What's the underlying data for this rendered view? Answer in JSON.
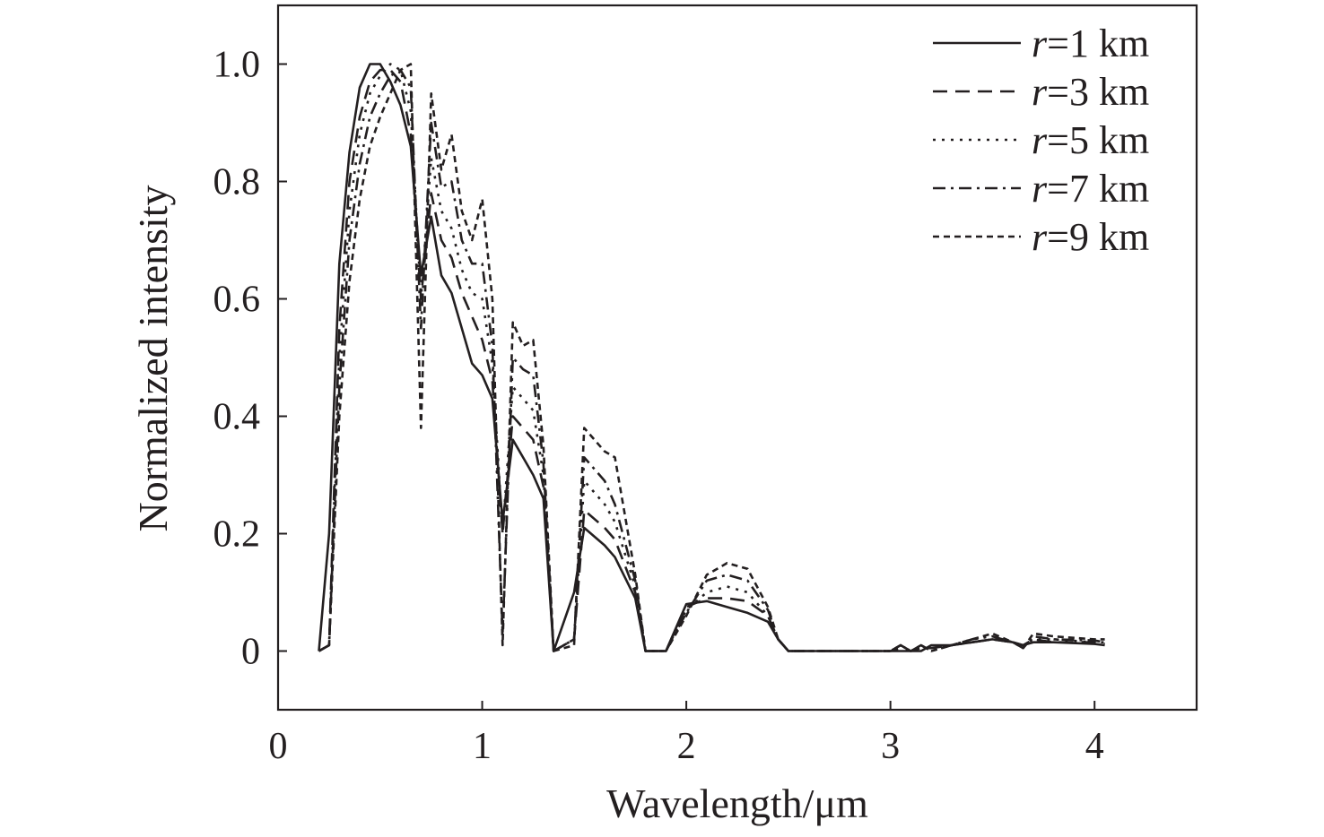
{
  "chart_data": {
    "type": "line",
    "xlabel": "Wavelength/μm",
    "ylabel": "Normalized intensity",
    "xlim": [
      0,
      4.5
    ],
    "ylim": [
      -0.1,
      1.1
    ],
    "xticks": [
      0,
      1,
      2,
      3,
      4
    ],
    "xtick_labels": [
      "0",
      "1",
      "2",
      "3",
      "4"
    ],
    "yticks": [
      0,
      0.2,
      0.4,
      0.6,
      0.8,
      1.0
    ],
    "ytick_labels": [
      "0",
      "0.2",
      "0.4",
      "0.6",
      "0.8",
      "1.0"
    ],
    "grid": false,
    "legend_position": "top-right",
    "series": [
      {
        "name": "r=1 km",
        "name_var": "r",
        "name_rest": "=1 km",
        "dash": "solid",
        "x": [
          0.2,
          0.25,
          0.3,
          0.35,
          0.4,
          0.45,
          0.5,
          0.55,
          0.6,
          0.65,
          0.7,
          0.75,
          0.8,
          0.85,
          0.9,
          0.95,
          1.0,
          1.05,
          1.1,
          1.15,
          1.2,
          1.25,
          1.3,
          1.35,
          1.45,
          1.5,
          1.6,
          1.65,
          1.75,
          1.8,
          1.85,
          1.9,
          2.0,
          2.1,
          2.2,
          2.3,
          2.4,
          2.45,
          2.5,
          2.7,
          2.9,
          3.0,
          3.05,
          3.1,
          3.15,
          3.2,
          3.3,
          3.4,
          3.5,
          3.6,
          3.65,
          3.7,
          3.8,
          4.0,
          4.05
        ],
        "y": [
          0,
          0.2,
          0.66,
          0.85,
          0.96,
          1.0,
          1.0,
          0.97,
          0.93,
          0.86,
          0.64,
          0.74,
          0.64,
          0.61,
          0.55,
          0.49,
          0.47,
          0.43,
          0.22,
          0.36,
          0.33,
          0.3,
          0.26,
          0.0,
          0.1,
          0.21,
          0.18,
          0.16,
          0.09,
          0.0,
          0.0,
          0.0,
          0.08,
          0.085,
          0.075,
          0.065,
          0.05,
          0.02,
          0.0,
          0.0,
          0.0,
          0.0,
          0.0,
          0.0,
          0.0,
          0.01,
          0.01,
          0.015,
          0.02,
          0.015,
          0.01,
          0.015,
          0.015,
          0.012,
          0.01
        ]
      },
      {
        "name": "r=3 km",
        "name_var": "r",
        "name_rest": "=3 km",
        "dash": "dashed",
        "x": [
          0.2,
          0.25,
          0.3,
          0.35,
          0.4,
          0.45,
          0.5,
          0.55,
          0.6,
          0.65,
          0.7,
          0.75,
          0.8,
          0.85,
          0.9,
          0.95,
          1.0,
          1.05,
          1.1,
          1.15,
          1.2,
          1.25,
          1.3,
          1.35,
          1.45,
          1.5,
          1.6,
          1.65,
          1.75,
          1.8,
          1.85,
          1.9,
          2.0,
          2.1,
          2.2,
          2.3,
          2.4,
          2.45,
          2.5,
          2.7,
          2.9,
          3.0,
          3.05,
          3.1,
          3.15,
          3.2,
          3.3,
          3.4,
          3.5,
          3.6,
          3.65,
          3.7,
          3.8,
          4.0,
          4.05
        ],
        "y": [
          0,
          0.01,
          0.55,
          0.8,
          0.91,
          0.97,
          0.99,
          0.99,
          0.97,
          0.88,
          0.6,
          0.78,
          0.7,
          0.67,
          0.61,
          0.57,
          0.53,
          0.46,
          0.2,
          0.4,
          0.38,
          0.36,
          0.28,
          0.0,
          0.02,
          0.24,
          0.21,
          0.19,
          0.1,
          0.0,
          0.0,
          0.0,
          0.075,
          0.09,
          0.09,
          0.085,
          0.06,
          0.02,
          0.0,
          0.0,
          0.0,
          0.0,
          0.005,
          0.0,
          0.005,
          0.005,
          0.01,
          0.015,
          0.02,
          0.015,
          0.01,
          0.02,
          0.015,
          0.015,
          0.012
        ]
      },
      {
        "name": "r=5 km",
        "name_var": "r",
        "name_rest": "=5 km",
        "dash": "dotted",
        "x": [
          0.2,
          0.25,
          0.3,
          0.35,
          0.4,
          0.45,
          0.5,
          0.55,
          0.6,
          0.65,
          0.7,
          0.75,
          0.8,
          0.85,
          0.9,
          0.95,
          1.0,
          1.05,
          1.1,
          1.15,
          1.2,
          1.25,
          1.3,
          1.35,
          1.45,
          1.5,
          1.6,
          1.65,
          1.75,
          1.8,
          1.85,
          1.9,
          2.0,
          2.1,
          2.2,
          2.3,
          2.4,
          2.45,
          2.5,
          2.7,
          2.9,
          3.0,
          3.05,
          3.1,
          3.15,
          3.2,
          3.3,
          3.4,
          3.5,
          3.6,
          3.65,
          3.7,
          3.8,
          4.0,
          4.05
        ],
        "y": [
          0,
          0.01,
          0.5,
          0.75,
          0.88,
          0.95,
          0.98,
          1.0,
          0.99,
          0.92,
          0.6,
          0.84,
          0.75,
          0.72,
          0.65,
          0.61,
          0.6,
          0.49,
          0.2,
          0.45,
          0.43,
          0.41,
          0.3,
          0.0,
          0.02,
          0.29,
          0.25,
          0.22,
          0.11,
          0.0,
          0.0,
          0.0,
          0.07,
          0.1,
          0.11,
          0.1,
          0.06,
          0.02,
          0.0,
          0.0,
          0.0,
          0.0,
          0.01,
          0.0,
          0.005,
          0.005,
          0.01,
          0.015,
          0.02,
          0.015,
          0.01,
          0.02,
          0.02,
          0.015,
          0.015
        ]
      },
      {
        "name": "r=7 km",
        "name_var": "r",
        "name_rest": "=7 km",
        "dash": "dashdot",
        "x": [
          0.2,
          0.25,
          0.3,
          0.35,
          0.4,
          0.45,
          0.5,
          0.55,
          0.6,
          0.65,
          0.7,
          0.75,
          0.8,
          0.85,
          0.9,
          0.95,
          1.0,
          1.05,
          1.1,
          1.15,
          1.2,
          1.25,
          1.3,
          1.35,
          1.45,
          1.5,
          1.6,
          1.65,
          1.75,
          1.8,
          1.85,
          1.9,
          2.0,
          2.1,
          2.2,
          2.3,
          2.4,
          2.45,
          2.5,
          2.7,
          2.9,
          3.0,
          3.05,
          3.1,
          3.15,
          3.2,
          3.3,
          3.4,
          3.5,
          3.6,
          3.65,
          3.7,
          3.8,
          4.0,
          4.05
        ],
        "y": [
          0,
          0.01,
          0.45,
          0.7,
          0.83,
          0.91,
          0.95,
          0.98,
          0.99,
          0.96,
          0.55,
          0.9,
          0.79,
          0.8,
          0.7,
          0.66,
          0.66,
          0.52,
          0.03,
          0.5,
          0.48,
          0.47,
          0.32,
          0.0,
          0.02,
          0.33,
          0.29,
          0.25,
          0.12,
          0.0,
          0.0,
          0.0,
          0.065,
          0.12,
          0.13,
          0.12,
          0.07,
          0.02,
          0.0,
          0.0,
          0.0,
          0.0,
          0.01,
          0.0,
          0.01,
          0.0,
          0.01,
          0.02,
          0.025,
          0.015,
          0.005,
          0.025,
          0.02,
          0.018,
          0.015
        ]
      },
      {
        "name": "r=9 km",
        "name_var": "r",
        "name_rest": "=9 km",
        "dash": "shortdash",
        "x": [
          0.2,
          0.25,
          0.3,
          0.35,
          0.4,
          0.45,
          0.5,
          0.55,
          0.6,
          0.65,
          0.7,
          0.75,
          0.8,
          0.85,
          0.9,
          0.95,
          1.0,
          1.05,
          1.1,
          1.15,
          1.2,
          1.25,
          1.3,
          1.35,
          1.45,
          1.5,
          1.6,
          1.65,
          1.75,
          1.8,
          1.85,
          1.9,
          2.0,
          2.1,
          2.2,
          2.3,
          2.4,
          2.45,
          2.5,
          2.7,
          2.9,
          3.0,
          3.05,
          3.1,
          3.15,
          3.2,
          3.3,
          3.4,
          3.5,
          3.6,
          3.65,
          3.7,
          3.8,
          4.0,
          4.05
        ],
        "y": [
          0,
          0.01,
          0.4,
          0.63,
          0.77,
          0.86,
          0.91,
          0.95,
          0.99,
          1.0,
          0.38,
          0.95,
          0.82,
          0.88,
          0.75,
          0.7,
          0.77,
          0.6,
          0.01,
          0.56,
          0.52,
          0.53,
          0.35,
          0.0,
          0.01,
          0.38,
          0.34,
          0.33,
          0.13,
          0.0,
          0.0,
          0.0,
          0.06,
          0.13,
          0.15,
          0.14,
          0.075,
          0.02,
          0.0,
          0.0,
          0.0,
          0.0,
          0.01,
          0.0,
          0.01,
          0.0,
          0.01,
          0.02,
          0.03,
          0.015,
          0.005,
          0.03,
          0.025,
          0.02,
          0.02
        ]
      }
    ]
  }
}
